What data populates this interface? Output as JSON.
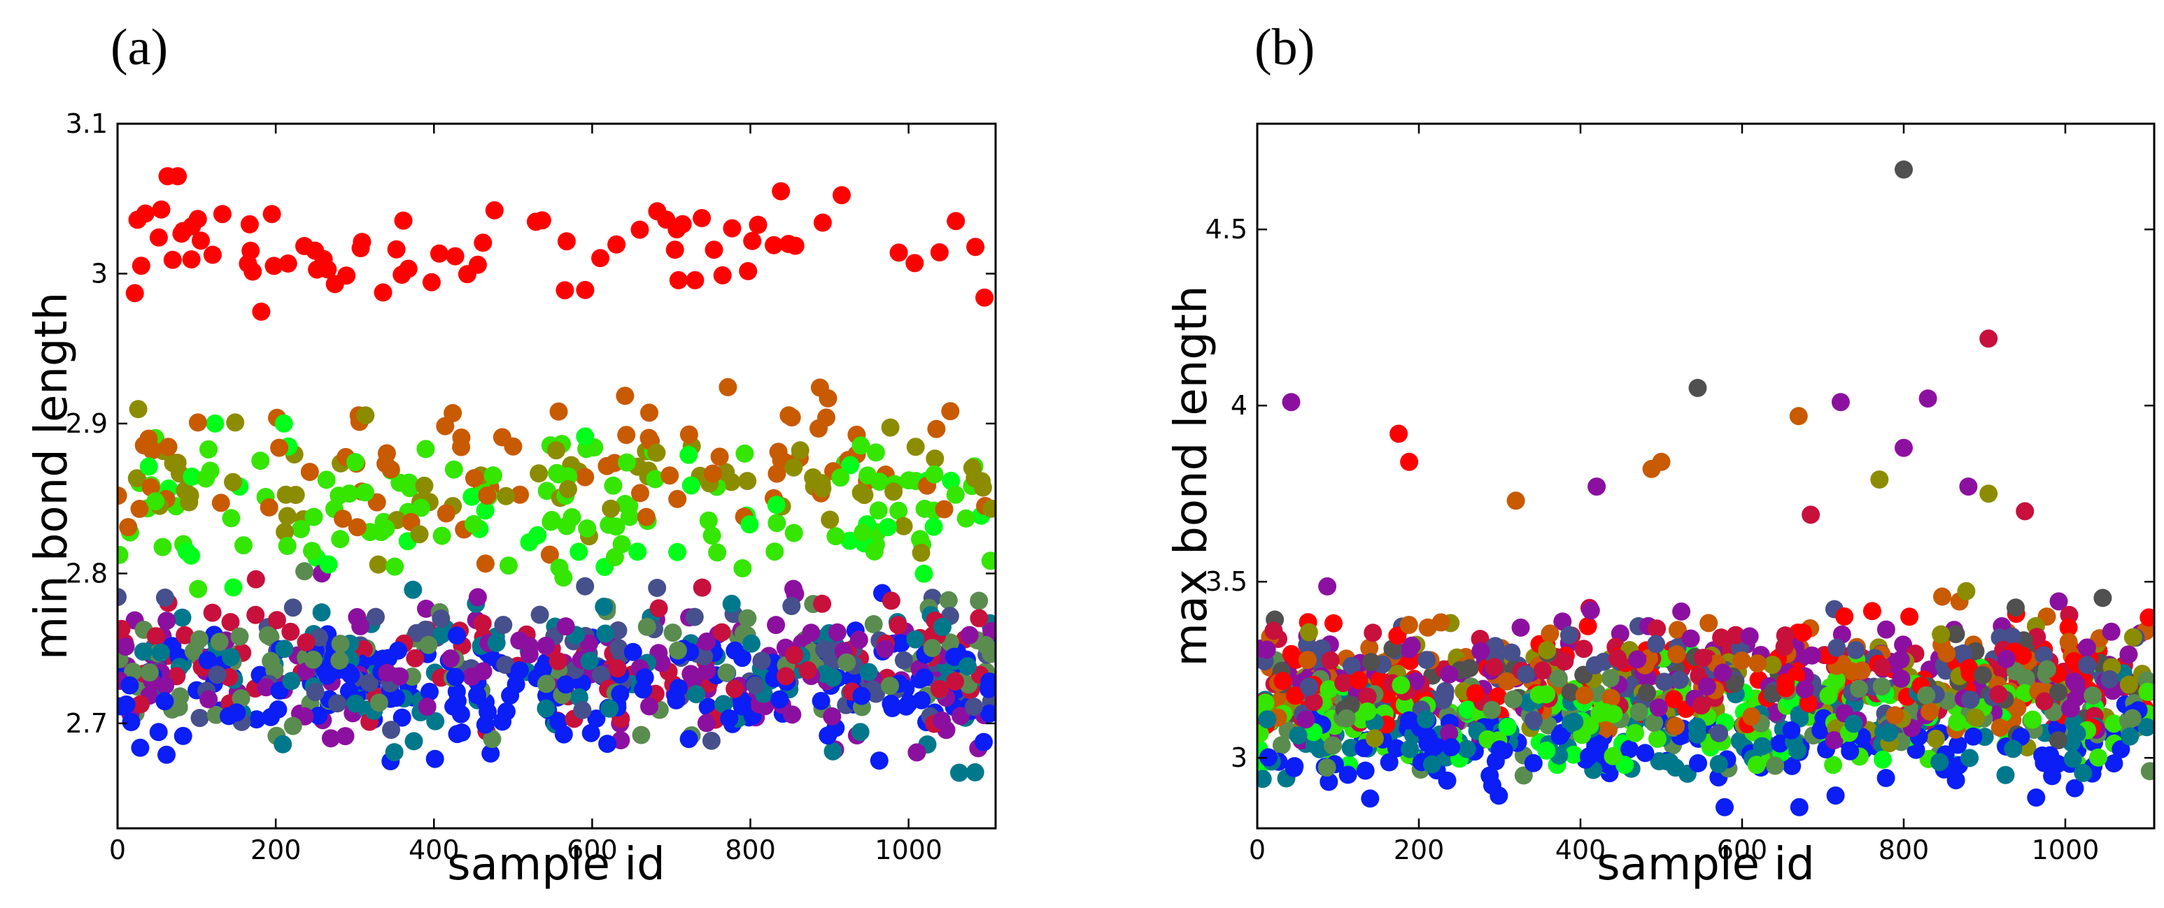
{
  "chart_data": [
    {
      "panel_label": "(a)",
      "type": "scatter",
      "title": "",
      "xlabel": "sample id",
      "ylabel": "min bond length",
      "xlim": [
        0,
        1110
      ],
      "ylim": [
        2.63,
        3.1
      ],
      "xticks": [
        0,
        200,
        400,
        600,
        800,
        1000
      ],
      "xtick_labels": [
        "0",
        "200",
        "400",
        "600",
        "800",
        "1000"
      ],
      "yticks": [
        2.7,
        2.8,
        2.9,
        3.0,
        3.1
      ],
      "ytick_labels": [
        "2.7",
        "2.8",
        "2.9",
        "3",
        "3.1"
      ],
      "grid": false,
      "seed": 11,
      "series": [
        {
          "name": "red",
          "color": "#ff0000",
          "count": 80,
          "y_mean": 3.02,
          "y_spread": 0.018,
          "y_min": 2.97,
          "y_max": 3.065
        },
        {
          "name": "orange-brown",
          "color": "#c85a00",
          "count": 85,
          "y_mean": 2.87,
          "y_spread": 0.025,
          "y_min": 2.78,
          "y_max": 2.94
        },
        {
          "name": "olive",
          "color": "#8c8c00",
          "count": 70,
          "y_mean": 2.86,
          "y_spread": 0.025,
          "y_min": 2.78,
          "y_max": 2.95
        },
        {
          "name": "green",
          "color": "#34e600",
          "count": 110,
          "y_mean": 2.845,
          "y_spread": 0.024,
          "y_min": 2.77,
          "y_max": 2.92
        },
        {
          "name": "bright-green",
          "color": "#00ff1a",
          "count": 40,
          "y_mean": 2.84,
          "y_spread": 0.03,
          "y_min": 2.77,
          "y_max": 2.9
        },
        {
          "name": "blue",
          "color": "#0a1ef5",
          "count": 200,
          "y_mean": 2.725,
          "y_spread": 0.022,
          "y_min": 2.64,
          "y_max": 2.79
        },
        {
          "name": "purple",
          "color": "#8c10a0",
          "count": 130,
          "y_mean": 2.735,
          "y_spread": 0.024,
          "y_min": 2.67,
          "y_max": 2.8
        },
        {
          "name": "teal",
          "color": "#00788c",
          "count": 110,
          "y_mean": 2.735,
          "y_spread": 0.024,
          "y_min": 2.665,
          "y_max": 2.8
        },
        {
          "name": "slate",
          "color": "#46508c",
          "count": 90,
          "y_mean": 2.74,
          "y_spread": 0.022,
          "y_min": 2.67,
          "y_max": 2.8
        },
        {
          "name": "crimson",
          "color": "#c8103c",
          "count": 90,
          "y_mean": 2.745,
          "y_spread": 0.022,
          "y_min": 2.67,
          "y_max": 2.81
        },
        {
          "name": "green-gray",
          "color": "#5a8c50",
          "count": 90,
          "y_mean": 2.745,
          "y_spread": 0.022,
          "y_min": 2.67,
          "y_max": 2.81
        }
      ]
    },
    {
      "panel_label": "(b)",
      "type": "scatter",
      "title": "",
      "xlabel": "sample id",
      "ylabel": "max bond length",
      "xlim": [
        0,
        1110
      ],
      "ylim": [
        2.8,
        4.8
      ],
      "xticks": [
        0,
        200,
        400,
        600,
        800,
        1000
      ],
      "xtick_labels": [
        "0",
        "200",
        "400",
        "600",
        "800",
        "1000"
      ],
      "yticks": [
        3.0,
        3.5,
        4.0,
        4.5
      ],
      "ytick_labels": [
        "3",
        "3.5",
        "4",
        "4.5"
      ],
      "grid": false,
      "seed": 23,
      "outliers": [
        {
          "x": 42,
          "y": 4.01,
          "color": "#8c10a0"
        },
        {
          "x": 545,
          "y": 4.05,
          "color": "#505050"
        },
        {
          "x": 800,
          "y": 4.67,
          "color": "#505050"
        },
        {
          "x": 905,
          "y": 4.19,
          "color": "#c8103c"
        },
        {
          "x": 175,
          "y": 3.92,
          "color": "#ff0000"
        },
        {
          "x": 188,
          "y": 3.84,
          "color": "#ff0000"
        },
        {
          "x": 670,
          "y": 3.97,
          "color": "#c85a00"
        },
        {
          "x": 722,
          "y": 4.01,
          "color": "#8c10a0"
        },
        {
          "x": 800,
          "y": 3.88,
          "color": "#8c10a0"
        },
        {
          "x": 830,
          "y": 4.02,
          "color": "#8c10a0"
        },
        {
          "x": 488,
          "y": 3.82,
          "color": "#c85a00"
        },
        {
          "x": 500,
          "y": 3.84,
          "color": "#c85a00"
        },
        {
          "x": 420,
          "y": 3.77,
          "color": "#8c10a0"
        },
        {
          "x": 880,
          "y": 3.77,
          "color": "#8c10a0"
        },
        {
          "x": 905,
          "y": 3.75,
          "color": "#8c8c00"
        },
        {
          "x": 770,
          "y": 3.79,
          "color": "#8c8c00"
        },
        {
          "x": 950,
          "y": 3.7,
          "color": "#c8103c"
        },
        {
          "x": 320,
          "y": 3.73,
          "color": "#c85a00"
        },
        {
          "x": 685,
          "y": 3.69,
          "color": "#c8103c"
        }
      ],
      "series": [
        {
          "name": "red",
          "color": "#ff0000",
          "count": 140,
          "y_mean": 3.24,
          "y_spread": 0.07,
          "y_min": 3.08,
          "y_max": 3.45
        },
        {
          "name": "orange-brown",
          "color": "#c85a00",
          "count": 110,
          "y_mean": 3.25,
          "y_spread": 0.08,
          "y_min": 3.08,
          "y_max": 3.6
        },
        {
          "name": "purple",
          "color": "#8c10a0",
          "count": 150,
          "y_mean": 3.23,
          "y_spread": 0.09,
          "y_min": 3.05,
          "y_max": 3.6
        },
        {
          "name": "olive",
          "color": "#8c8c00",
          "count": 90,
          "y_mean": 3.2,
          "y_spread": 0.08,
          "y_min": 3.03,
          "y_max": 3.5
        },
        {
          "name": "crimson",
          "color": "#c8103c",
          "count": 90,
          "y_mean": 3.24,
          "y_spread": 0.08,
          "y_min": 3.08,
          "y_max": 3.55
        },
        {
          "name": "slate",
          "color": "#46508c",
          "count": 110,
          "y_mean": 3.22,
          "y_spread": 0.09,
          "y_min": 3.03,
          "y_max": 3.5
        },
        {
          "name": "gray",
          "color": "#505050",
          "count": 60,
          "y_mean": 3.22,
          "y_spread": 0.09,
          "y_min": 3.05,
          "y_max": 3.5
        },
        {
          "name": "green",
          "color": "#34e600",
          "count": 120,
          "y_mean": 3.12,
          "y_spread": 0.07,
          "y_min": 2.98,
          "y_max": 3.35
        },
        {
          "name": "bright-green",
          "color": "#00ff1a",
          "count": 60,
          "y_mean": 3.1,
          "y_spread": 0.07,
          "y_min": 2.98,
          "y_max": 3.35
        },
        {
          "name": "teal",
          "color": "#00788c",
          "count": 120,
          "y_mean": 3.06,
          "y_spread": 0.07,
          "y_min": 2.93,
          "y_max": 3.3
        },
        {
          "name": "green-gray",
          "color": "#5a8c50",
          "count": 100,
          "y_mean": 3.12,
          "y_spread": 0.08,
          "y_min": 2.95,
          "y_max": 3.4
        },
        {
          "name": "blue",
          "color": "#0a1ef5",
          "count": 140,
          "y_mean": 3.03,
          "y_spread": 0.065,
          "y_min": 2.86,
          "y_max": 3.25
        }
      ]
    }
  ]
}
